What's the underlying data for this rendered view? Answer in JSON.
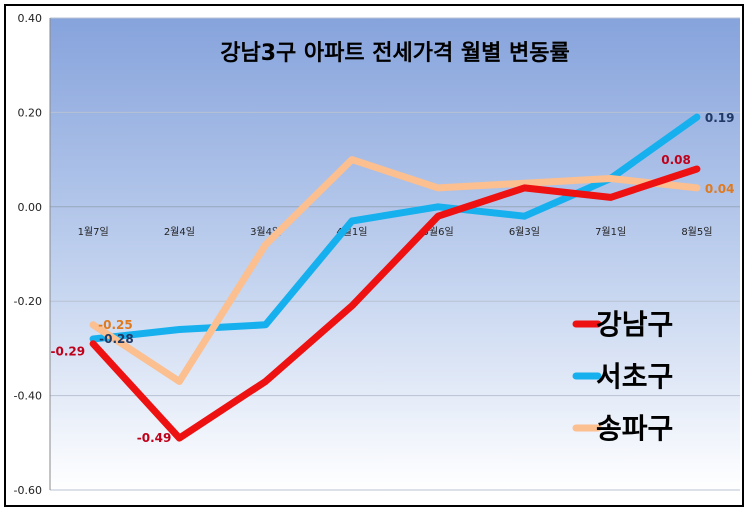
{
  "chart_data": {
    "type": "line",
    "title": "강남3구 아파트 전세가격  월별 변동률",
    "categories": [
      "1월7일",
      "2월4일",
      "3월4일",
      "4월1일",
      "5월6일",
      "6월3일",
      "7월1일",
      "8월5일"
    ],
    "ylim": [
      -0.6,
      0.4
    ],
    "yticks": [
      "0.40",
      "0.20",
      "0.00",
      "-0.20",
      "-0.40",
      "-0.60"
    ],
    "grid": true,
    "legend_position": "right",
    "series": [
      {
        "name": "강남구",
        "color": "#ee1111",
        "values": [
          -0.29,
          -0.49,
          -0.37,
          -0.21,
          -0.02,
          0.04,
          0.02,
          0.08
        ]
      },
      {
        "name": "서초구",
        "color": "#16b0ee",
        "values": [
          -0.28,
          -0.26,
          -0.25,
          -0.03,
          0.0,
          -0.02,
          0.06,
          0.19
        ]
      },
      {
        "name": "송파구",
        "color": "#fbbf90",
        "values": [
          -0.25,
          -0.37,
          -0.08,
          0.1,
          0.04,
          0.05,
          0.06,
          0.04
        ]
      }
    ],
    "data_labels": [
      {
        "series": 0,
        "index": 0,
        "text": "-0.29",
        "color": "#c0001a"
      },
      {
        "series": 0,
        "index": 1,
        "text": "-0.49",
        "color": "#c0001a"
      },
      {
        "series": 0,
        "index": 7,
        "text": "0.08",
        "color": "#c0001a"
      },
      {
        "series": 1,
        "index": 0,
        "text": "-0.28",
        "color": "#1f3864"
      },
      {
        "series": 1,
        "index": 7,
        "text": "0.19",
        "color": "#1f3864"
      },
      {
        "series": 2,
        "index": 0,
        "text": "-0.25",
        "color": "#e07a1f"
      },
      {
        "series": 2,
        "index": 7,
        "text": "0.04",
        "color": "#e07a1f"
      }
    ]
  }
}
